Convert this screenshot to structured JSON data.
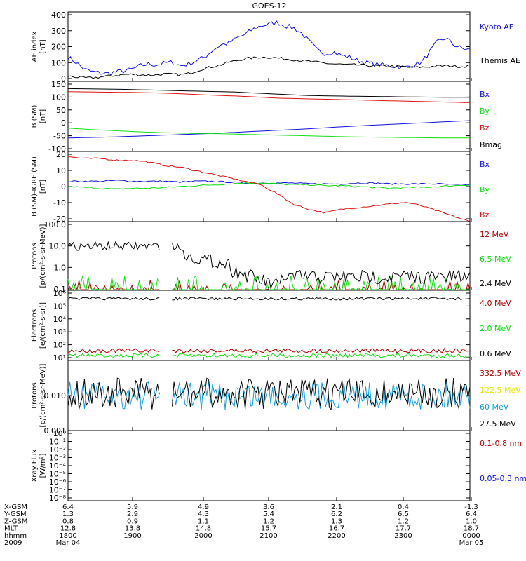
{
  "title": "GOES-12",
  "colors": {
    "black": "#000000",
    "blue": "#1010e0",
    "green": "#10e010",
    "red": "#e01010",
    "dkred": "#b00000",
    "yellow": "#e8e800",
    "cyan": "#10a0d8"
  },
  "chart_data": [
    {
      "type": "line",
      "ylabel": [
        "AE index",
        "[nT]"
      ],
      "ylim": [
        0,
        400
      ],
      "yticks": [
        "400",
        "300",
        "200",
        "100",
        "0"
      ],
      "series": [
        {
          "name": "Kyoto AE",
          "color_key": "blue",
          "values": [
            140,
            110,
            70,
            55,
            48,
            45,
            55,
            60,
            70,
            90,
            100,
            95,
            105,
            110,
            90,
            100,
            120,
            140,
            180,
            210,
            220,
            250,
            270,
            300,
            320,
            330,
            340,
            320,
            310,
            280,
            230,
            180,
            160,
            170,
            150,
            140,
            120,
            110,
            100,
            95,
            90,
            85,
            80,
            95,
            110,
            170,
            230,
            250,
            210,
            190,
            180
          ]
        },
        {
          "name": "Themis AE",
          "color_key": "black",
          "values": [
            30,
            25,
            20,
            20,
            25,
            30,
            35,
            40,
            40,
            38,
            36,
            38,
            42,
            40,
            38,
            45,
            60,
            75,
            85,
            95,
            110,
            120,
            130,
            135,
            140,
            138,
            135,
            130,
            125,
            120,
            115,
            110,
            105,
            100,
            98,
            95,
            95,
            92,
            90,
            88,
            88,
            85,
            82,
            80,
            82,
            85,
            88,
            90,
            88,
            85,
            90
          ]
        }
      ]
    },
    {
      "type": "line",
      "ylabel": [
        "B (SM)",
        "[nT]"
      ],
      "ylim": [
        -100,
        150
      ],
      "yticks": [
        "150",
        "100",
        "50",
        "0",
        "-50",
        "-100"
      ],
      "series": [
        {
          "name": "Bx",
          "color_key": "blue",
          "values": [
            -52,
            -50,
            -48,
            -45,
            -42,
            -39,
            -36,
            -32,
            -28,
            -24,
            -20,
            -15,
            -10,
            -6,
            -2,
            2,
            6,
            10
          ]
        },
        {
          "name": "By",
          "color_key": "green",
          "values": [
            -17,
            -22,
            -26,
            -30,
            -33,
            -35,
            -36,
            -38,
            -40,
            -42,
            -44,
            -46,
            -48,
            -49,
            -50,
            -51,
            -52,
            -52
          ]
        },
        {
          "name": "Bz",
          "color_key": "red",
          "values": [
            113,
            112,
            111,
            110,
            108,
            105,
            101,
            98,
            94,
            90,
            88,
            86,
            84,
            82,
            80,
            78,
            76,
            74
          ]
        },
        {
          "name": "Bmag",
          "color_key": "black",
          "values": [
            124,
            123,
            122,
            120,
            118,
            116,
            114,
            112,
            108,
            104,
            100,
            98,
            97,
            96,
            95,
            94,
            93,
            93
          ]
        }
      ]
    },
    {
      "type": "line",
      "ylabel": [
        "B (SM)-IGRF (SM)",
        "[nT]"
      ],
      "ylim": [
        -20,
        20
      ],
      "yticks": [
        "20",
        "10",
        "0",
        "-10",
        "-20"
      ],
      "series": [
        {
          "name": "Bx",
          "color_key": "blue",
          "values": [
            3,
            3,
            3,
            3.5,
            3,
            3,
            3,
            2.5,
            3,
            3,
            2.5,
            2,
            2,
            2,
            2,
            1.5,
            1.5,
            1.5,
            2,
            2,
            1.5,
            1.5,
            1.5,
            1.5,
            1,
            1
          ]
        },
        {
          "name": "By",
          "color_key": "green",
          "values": [
            0,
            -0.5,
            -1,
            -1.5,
            -1,
            -1,
            -0.5,
            0,
            0.5,
            1,
            1.5,
            2,
            2,
            1.5,
            1,
            1,
            0.5,
            0.5,
            0,
            -0.5,
            -1,
            -0.5,
            -0.5,
            0,
            0.5,
            1
          ]
        },
        {
          "name": "Bz",
          "color_key": "red",
          "values": [
            17,
            16,
            16,
            15,
            15,
            14,
            12,
            11,
            9,
            7,
            5,
            3,
            1,
            -4,
            -10,
            -13,
            -15,
            -13,
            -12,
            -11,
            -10,
            -9,
            -11,
            -14,
            -17,
            -20
          ]
        }
      ]
    },
    {
      "type": "line",
      "log": true,
      "ylabel": [
        "Protons",
        "[p/(cm²-s-sr-MeV)]"
      ],
      "ylim": [
        0.1,
        100
      ],
      "yticks": [
        "100.0",
        "10.0",
        "1.0",
        "0.1"
      ],
      "series": [
        {
          "name": "12 MeV",
          "color_key": "dkred"
        },
        {
          "name": "6.5 MeV",
          "color_key": "green"
        },
        {
          "name": "2.4 MeV",
          "color_key": "black"
        }
      ]
    },
    {
      "type": "line",
      "log": true,
      "ylabel": [
        "Electrons",
        "[e/(cm²-s-sr)]"
      ],
      "ylim": [
        10,
        1000000
      ],
      "yticks": [
        "10⁶",
        "10⁵",
        "10⁴",
        "10³",
        "10²",
        "10¹"
      ],
      "series": [
        {
          "name": "4.0 MeV",
          "color_key": "dkred"
        },
        {
          "name": "2.0 MeV",
          "color_key": "green"
        },
        {
          "name": "0.6 MeV",
          "color_key": "black"
        }
      ]
    },
    {
      "type": "line",
      "log": true,
      "ylabel": [
        "Protons",
        "[p/(cm²-s-sr-MeV)]"
      ],
      "ylim": [
        0.001,
        0.1
      ],
      "yticks": [
        "0.010",
        "0.001"
      ],
      "series": [
        {
          "name": "332.5 MeV",
          "color_key": "dkred"
        },
        {
          "name": "122.5 MeV",
          "color_key": "yellow"
        },
        {
          "name": "60 MeV",
          "color_key": "cyan"
        },
        {
          "name": "27.5 MeV",
          "color_key": "black"
        }
      ]
    },
    {
      "type": "line",
      "log": true,
      "ylabel": [
        "Xray Flux",
        "[W/m²]"
      ],
      "ylim": [
        1e-08,
        1
      ],
      "yticks": [
        "10⁰",
        "10⁻¹",
        "10⁻²",
        "10⁻³",
        "10⁻⁴",
        "10⁻⁵",
        "10⁻⁶",
        "10⁻⁷",
        "10⁻⁸"
      ],
      "series": [
        {
          "name": "0.1-0.8 nm",
          "color_key": "dkred"
        },
        {
          "name": "0.05-0.3 nm",
          "color_key": "blue"
        }
      ]
    }
  ],
  "axis_table": {
    "rows": [
      {
        "label": "X-GSM",
        "values": [
          "6.4",
          "5.9",
          "4.9",
          "3.6",
          "2.1",
          "0.4",
          "-1.3"
        ]
      },
      {
        "label": "Y-GSM",
        "values": [
          "1.3",
          "2.9",
          "4.3",
          "5.4",
          "6.2",
          "6.5",
          "6.4"
        ]
      },
      {
        "label": "Z-GSM",
        "values": [
          "0.8",
          "0.9",
          "1.1",
          "1.2",
          "1.3",
          "1.2",
          "1.0"
        ]
      },
      {
        "label": "MLT",
        "values": [
          "12.8",
          "13.8",
          "14.8",
          "15.7",
          "16.7",
          "17.7",
          "18.7"
        ]
      },
      {
        "label": "hhmm",
        "values": [
          "1800",
          "1900",
          "2000",
          "2100",
          "2200",
          "2300",
          "0000"
        ]
      },
      {
        "label": "2009",
        "values": [
          "Mar 04",
          "",
          "",
          "",
          "",
          "",
          "Mar 05"
        ]
      }
    ]
  }
}
